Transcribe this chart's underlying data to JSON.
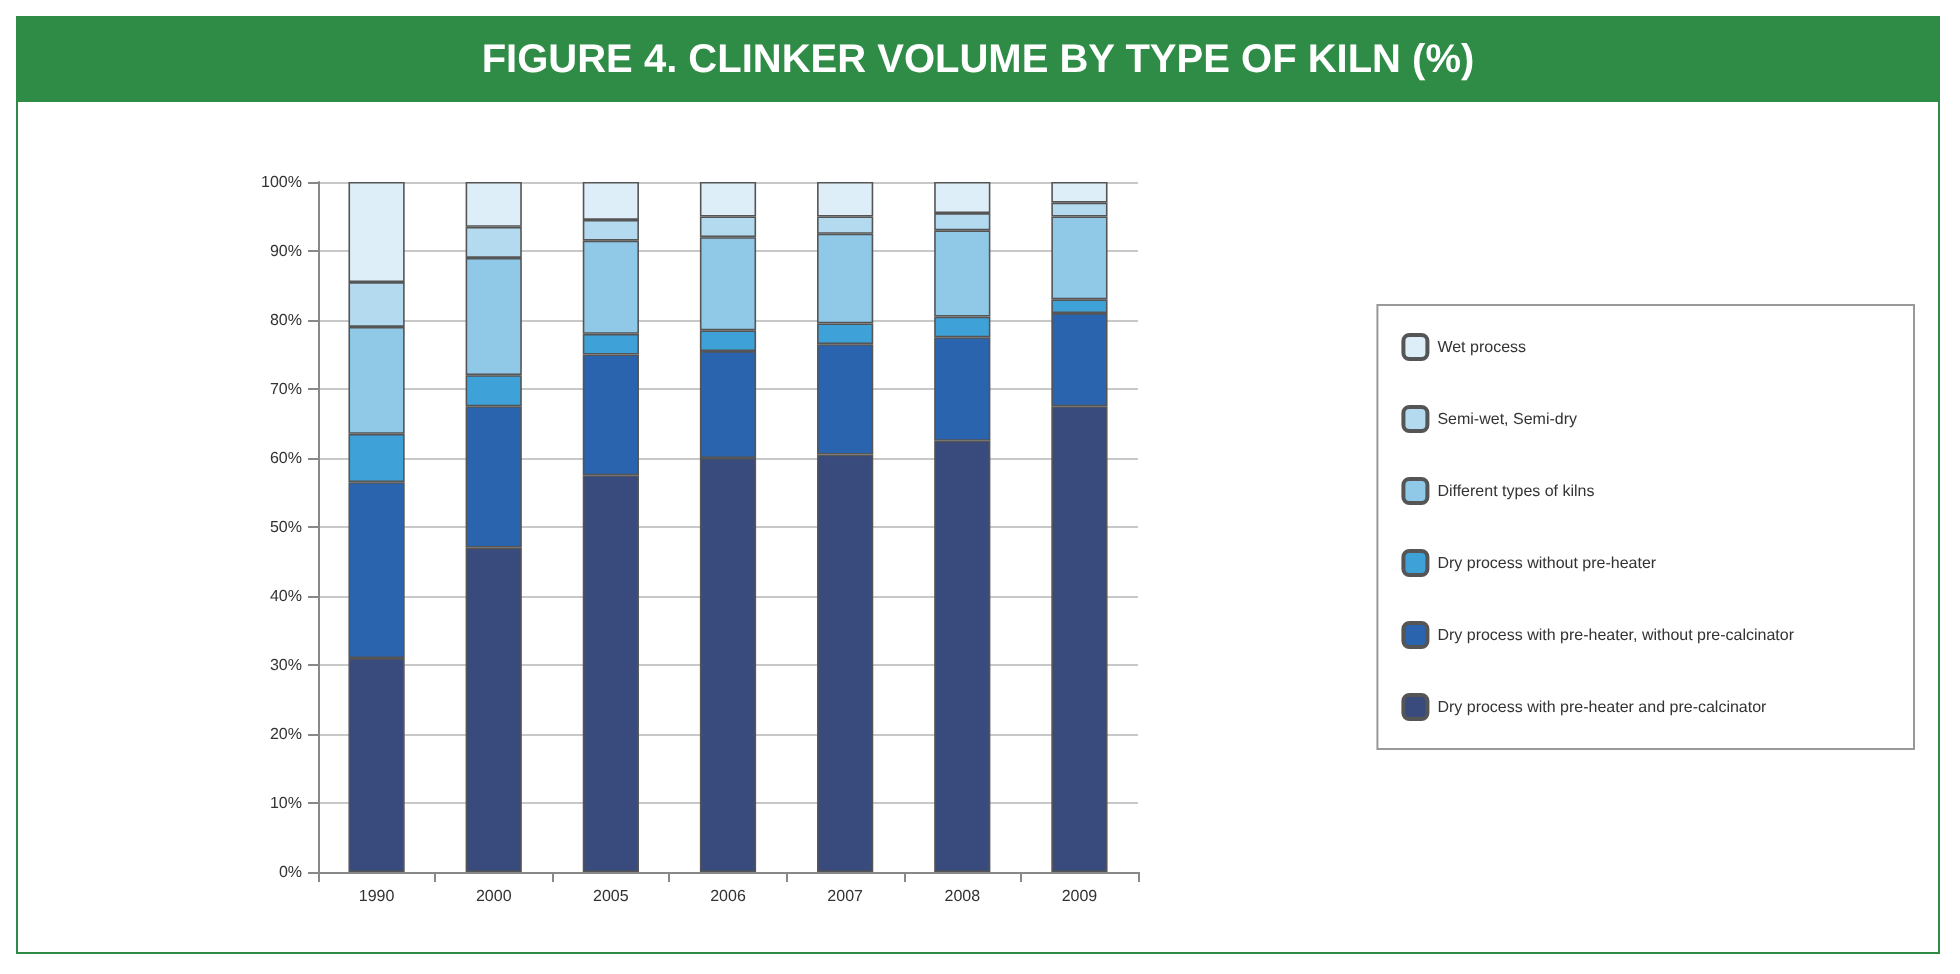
{
  "chart_data": {
    "type": "bar",
    "title": "FIGURE 4. CLINKER VOLUME BY TYPE OF KILN (%)",
    "categories": [
      "1990",
      "2000",
      "2005",
      "2006",
      "2007",
      "2008",
      "2009"
    ],
    "stacked": true,
    "series": [
      {
        "name": "Dry process with pre-heater and pre-calcinator",
        "color": "#394a7c",
        "values": [
          31,
          47,
          57.5,
          60,
          60.5,
          62.5,
          67.5
        ]
      },
      {
        "name": "Dry process with pre-heater, without pre-calcinator",
        "color": "#2a63ae",
        "values": [
          25.5,
          20.5,
          17.5,
          15.5,
          16,
          15,
          13.5
        ]
      },
      {
        "name": "Dry process without pre-heater",
        "color": "#3ea2d9",
        "values": [
          7,
          4.5,
          3,
          3,
          3,
          3,
          2
        ]
      },
      {
        "name": "Different types of kilns",
        "color": "#8fc9e7",
        "values": [
          15.5,
          17,
          13.5,
          13.5,
          13,
          12.5,
          12
        ]
      },
      {
        "name": "Semi-wet, Semi-dry",
        "color": "#b3daef",
        "values": [
          6.5,
          4.5,
          3,
          3,
          2.5,
          2.5,
          2
        ]
      },
      {
        "name": "Wet process",
        "color": "#ddeef8",
        "values": [
          14.5,
          6.5,
          5.5,
          5,
          5,
          4.5,
          3
        ]
      }
    ],
    "ylim": [
      0,
      100
    ],
    "yticks": [
      {
        "value": 0,
        "label": "0%"
      },
      {
        "value": 10,
        "label": "10%"
      },
      {
        "value": 20,
        "label": "20%"
      },
      {
        "value": 30,
        "label": "30%"
      },
      {
        "value": 40,
        "label": "40%"
      },
      {
        "value": 50,
        "label": "50%"
      },
      {
        "value": 60,
        "label": "60%"
      },
      {
        "value": 70,
        "label": "70%"
      },
      {
        "value": 80,
        "label": "80%"
      },
      {
        "value": 90,
        "label": "90%"
      },
      {
        "value": 100,
        "label": "100%"
      }
    ],
    "grid": "y",
    "legend": "right"
  }
}
